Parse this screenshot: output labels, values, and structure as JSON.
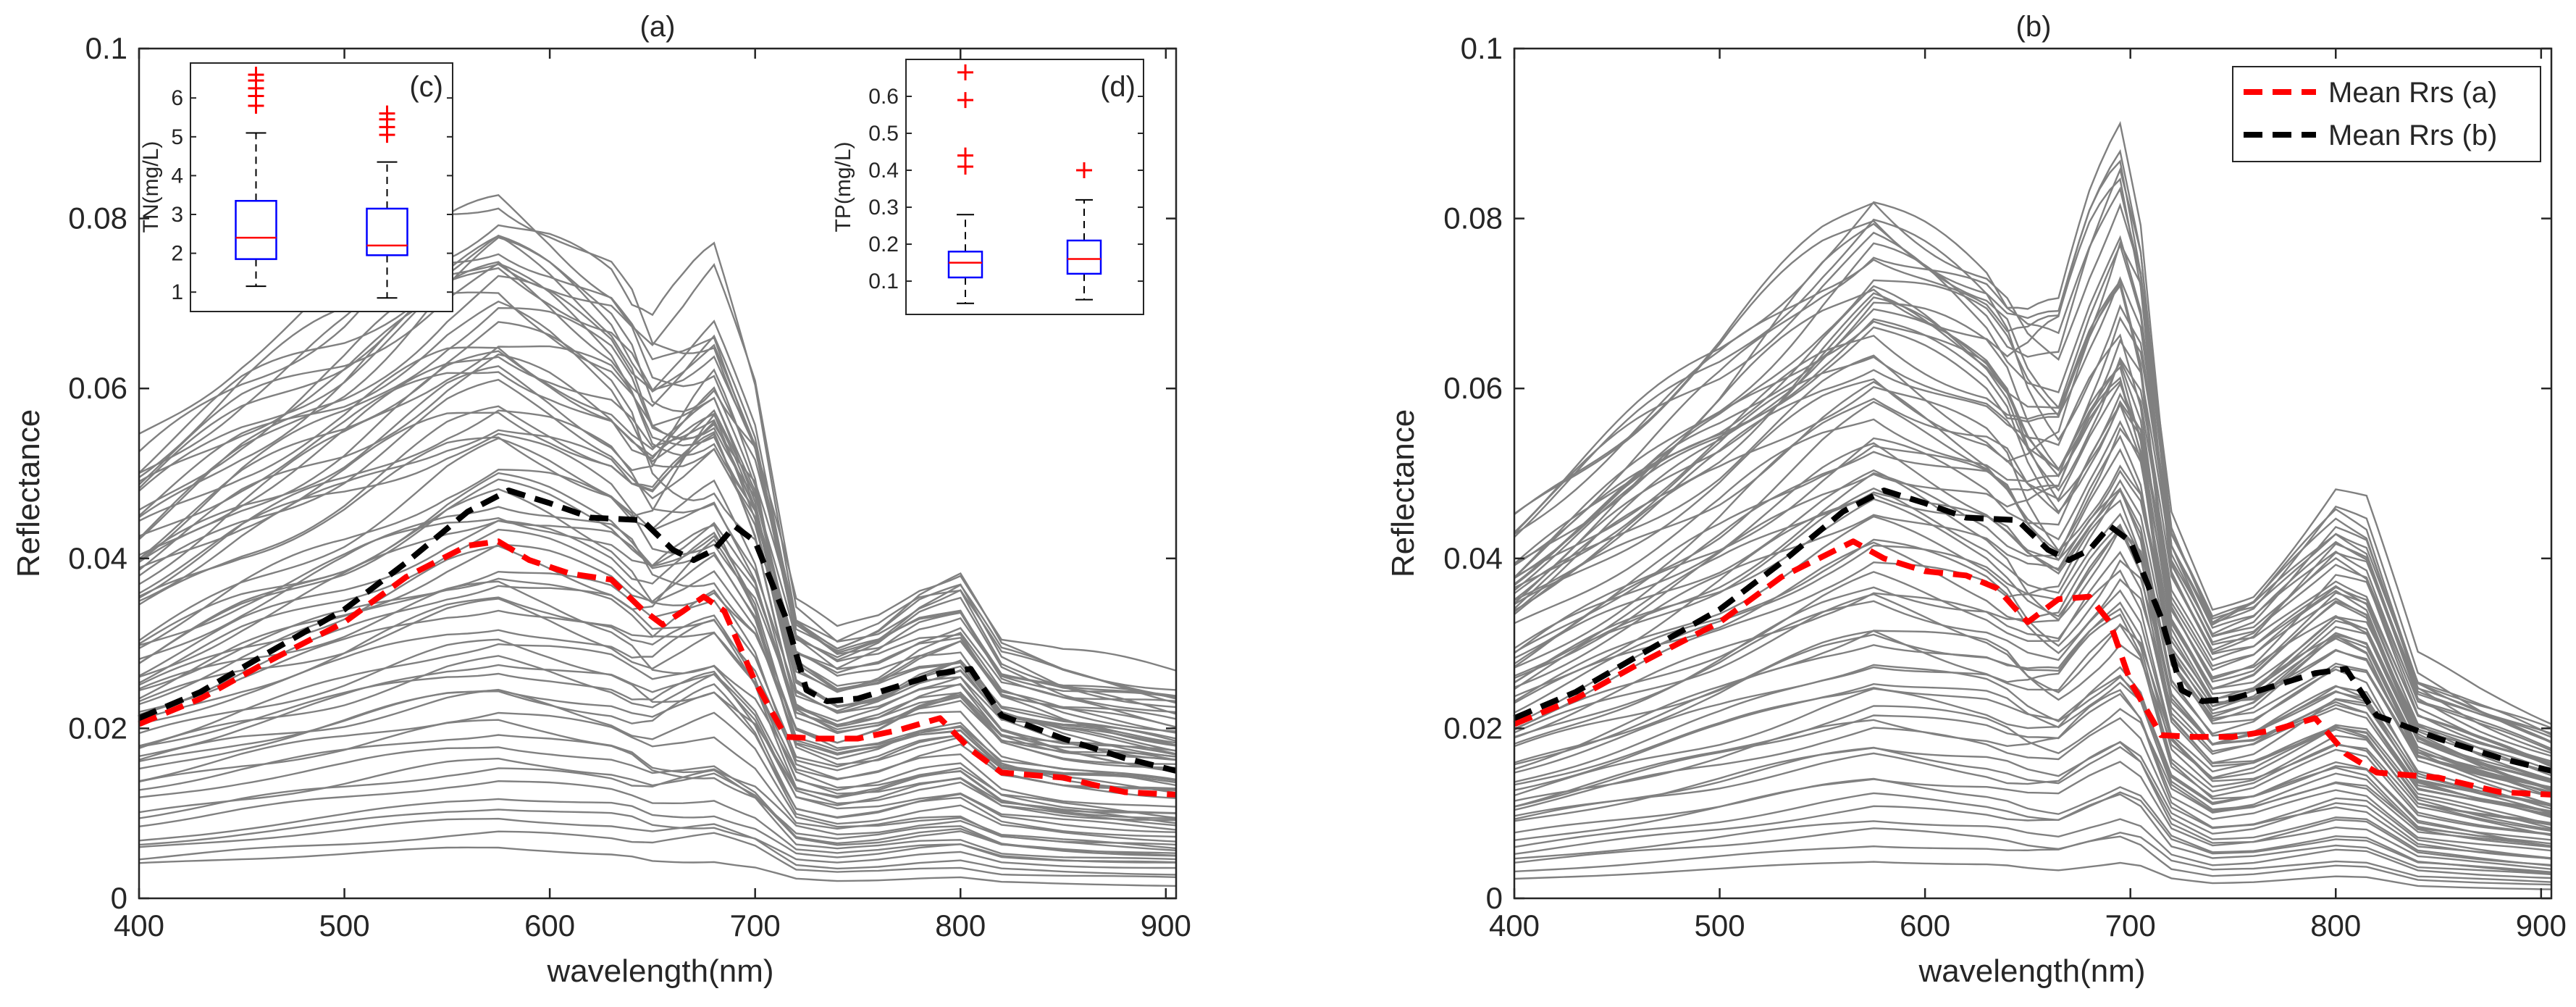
{
  "chart_data": [
    {
      "panel": "a",
      "type": "line",
      "title": "(a)",
      "xlabel": "wavelength(nm)",
      "ylabel": "Reflectance",
      "xlim": [
        400,
        905
      ],
      "ylim": [
        0,
        0.1
      ],
      "xticks": [
        "400",
        "500",
        "600",
        "700",
        "800",
        "900"
      ],
      "yticks": [
        "0",
        "0.02",
        "0.04",
        "0.06",
        "0.08",
        "0.1"
      ],
      "series": [
        {
          "name": "Mean Rrs (a)",
          "color": "#ff0000",
          "style": "dashed",
          "x": [
            400,
            430,
            460,
            500,
            530,
            560,
            575,
            590,
            610,
            630,
            645,
            655,
            665,
            675,
            685,
            700,
            715,
            730,
            750,
            770,
            790,
            805,
            820,
            850,
            880,
            905
          ],
          "y": [
            0.0205,
            0.0235,
            0.0275,
            0.0325,
            0.0378,
            0.0415,
            0.042,
            0.0398,
            0.0382,
            0.0375,
            0.034,
            0.0322,
            0.0338,
            0.0355,
            0.0338,
            0.0255,
            0.019,
            0.0188,
            0.0188,
            0.0198,
            0.0212,
            0.0175,
            0.0148,
            0.0142,
            0.0125,
            0.0122
          ]
        },
        {
          "name": "Mean Rrs (b)",
          "color": "#000000",
          "style": "dashed",
          "x": [
            400,
            430,
            460,
            500,
            530,
            560,
            580,
            600,
            620,
            645,
            660,
            670,
            680,
            690,
            700,
            715,
            725,
            735,
            750,
            770,
            790,
            805,
            820,
            850,
            880,
            905
          ],
          "y": [
            0.0212,
            0.0243,
            0.0285,
            0.034,
            0.0395,
            0.0455,
            0.048,
            0.0465,
            0.0448,
            0.0445,
            0.041,
            0.0398,
            0.041,
            0.0438,
            0.042,
            0.033,
            0.0245,
            0.0232,
            0.0235,
            0.025,
            0.0265,
            0.027,
            0.0215,
            0.0188,
            0.0165,
            0.015
          ]
        }
      ],
      "background_spectra": {
        "color": "#808080",
        "count": 70,
        "scale_range": [
          0.12,
          1.7
        ],
        "base_shape": {
          "x": [
            400,
            450,
            500,
            550,
            575,
            600,
            630,
            650,
            665,
            680,
            700,
            720,
            740,
            760,
            780,
            800,
            820,
            850,
            905
          ],
          "y": [
            0.62,
            0.74,
            0.84,
            0.96,
            1.0,
            0.96,
            0.9,
            0.81,
            0.84,
            0.88,
            0.72,
            0.42,
            0.38,
            0.4,
            0.44,
            0.46,
            0.36,
            0.33,
            0.3
          ]
        }
      },
      "insets": [
        {
          "type": "box",
          "label": "(c)",
          "ylabel": "TN(mg/L)",
          "ylim": [
            0.5,
            6.9
          ],
          "yticks": [
            "1",
            "2",
            "3",
            "4",
            "5",
            "6"
          ],
          "boxes": [
            {
              "whisker_low": 1.15,
              "q1": 1.85,
              "median": 2.4,
              "q3": 3.35,
              "whisker_high": 5.1,
              "outliers": [
                5.8,
                6.05,
                6.25,
                6.45,
                6.6
              ]
            },
            {
              "whisker_low": 0.85,
              "q1": 1.95,
              "median": 2.2,
              "q3": 3.15,
              "whisker_high": 4.35,
              "outliers": [
                5.05,
                5.25,
                5.45,
                5.6
              ]
            }
          ]
        },
        {
          "type": "box",
          "label": "(d)",
          "ylabel": "TP(mg/L)",
          "ylim": [
            0.01,
            0.7
          ],
          "yticks": [
            "0.1",
            "0.2",
            "0.3",
            "0.4",
            "0.5",
            "0.6"
          ],
          "boxes": [
            {
              "whisker_low": 0.04,
              "q1": 0.11,
              "median": 0.15,
              "q3": 0.18,
              "whisker_high": 0.28,
              "outliers": [
                0.41,
                0.44,
                0.59,
                0.665
              ]
            },
            {
              "whisker_low": 0.05,
              "q1": 0.12,
              "median": 0.16,
              "q3": 0.21,
              "whisker_high": 0.32,
              "outliers": [
                0.4
              ]
            }
          ]
        }
      ]
    },
    {
      "panel": "b",
      "type": "line",
      "title": "(b)",
      "xlabel": "wavelength(nm)",
      "ylabel": "Reflectance",
      "xlim": [
        400,
        905
      ],
      "ylim": [
        0,
        0.1
      ],
      "xticks": [
        "400",
        "500",
        "600",
        "700",
        "800",
        "900"
      ],
      "yticks": [
        "0",
        "0.02",
        "0.04",
        "0.06",
        "0.08",
        "0.1"
      ],
      "legend": {
        "position": "top-right",
        "entries": [
          "Mean Rrs (a)",
          "Mean Rrs (b)"
        ]
      },
      "series": [
        {
          "name": "Mean Rrs (a)",
          "color": "#ff0000",
          "style": "dashed",
          "x": [
            400,
            430,
            460,
            500,
            530,
            565,
            580,
            600,
            620,
            635,
            650,
            665,
            680,
            690,
            700,
            715,
            730,
            750,
            770,
            790,
            805,
            820,
            850,
            880,
            905
          ],
          "y": [
            0.0205,
            0.0235,
            0.0275,
            0.0325,
            0.0378,
            0.042,
            0.04,
            0.0385,
            0.038,
            0.0365,
            0.0325,
            0.0352,
            0.0355,
            0.0325,
            0.0255,
            0.0192,
            0.019,
            0.019,
            0.0198,
            0.0212,
            0.017,
            0.0148,
            0.0142,
            0.0125,
            0.0122
          ]
        },
        {
          "name": "Mean Rrs (b)",
          "color": "#000000",
          "style": "dashed",
          "x": [
            400,
            430,
            460,
            500,
            530,
            560,
            580,
            600,
            620,
            645,
            660,
            670,
            680,
            690,
            700,
            715,
            725,
            735,
            750,
            770,
            790,
            805,
            820,
            850,
            880,
            905
          ],
          "y": [
            0.0212,
            0.0243,
            0.0285,
            0.034,
            0.0395,
            0.0455,
            0.048,
            0.0465,
            0.0448,
            0.0445,
            0.041,
            0.0398,
            0.041,
            0.0438,
            0.042,
            0.033,
            0.0245,
            0.0232,
            0.0235,
            0.025,
            0.0265,
            0.027,
            0.0215,
            0.0188,
            0.0165,
            0.015
          ]
        }
      ],
      "background_spectra": {
        "color": "#808080",
        "count": 75,
        "scale_range": [
          0.1,
          1.85
        ],
        "base_shape": {
          "x": [
            400,
            450,
            500,
            550,
            575,
            600,
            630,
            650,
            665,
            680,
            695,
            705,
            720,
            740,
            760,
            780,
            800,
            815,
            840,
            870,
            905
          ],
          "y": [
            0.48,
            0.6,
            0.72,
            0.86,
            0.92,
            0.88,
            0.83,
            0.76,
            0.74,
            0.86,
            0.96,
            0.86,
            0.5,
            0.38,
            0.4,
            0.46,
            0.52,
            0.5,
            0.3,
            0.26,
            0.22
          ]
        }
      }
    }
  ]
}
